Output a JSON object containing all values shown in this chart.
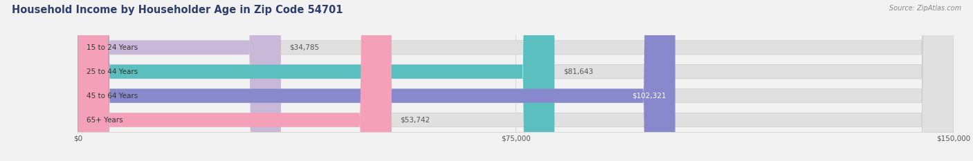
{
  "title": "Household Income by Householder Age in Zip Code 54701",
  "source": "Source: ZipAtlas.com",
  "categories": [
    "15 to 24 Years",
    "25 to 44 Years",
    "45 to 64 Years",
    "65+ Years"
  ],
  "values": [
    34785,
    81643,
    102321,
    53742
  ],
  "bar_colors": [
    "#c9b8d8",
    "#5bbfbf",
    "#8888cc",
    "#f4a0b8"
  ],
  "label_colors": [
    "#555555",
    "#555555",
    "#ffffff",
    "#555555"
  ],
  "xlim": [
    0,
    150000
  ],
  "xticks": [
    0,
    75000,
    150000
  ],
  "xtick_labels": [
    "$0",
    "$75,000",
    "$150,000"
  ],
  "background_color": "#f2f2f2",
  "bar_bg_color": "#e0e0e0",
  "title_fontsize": 10.5,
  "title_color": "#2e3f6e",
  "bar_height": 0.58,
  "figsize": [
    14.06,
    2.33
  ],
  "dpi": 100
}
